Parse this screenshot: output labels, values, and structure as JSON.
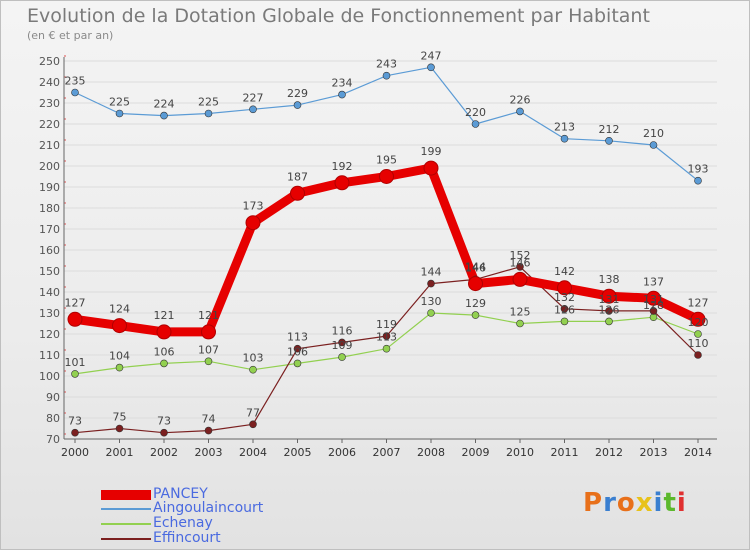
{
  "title": "Evolution de la Dotation Globale de Fonctionnement par Habitant",
  "subtitle": "(en € et par an)",
  "logo": {
    "text": "Proxiti",
    "letters": [
      "P",
      "r",
      "o",
      "x",
      "i",
      "t",
      "i"
    ],
    "colors": [
      "#e8701a",
      "#3a7fd0",
      "#e8701a",
      "#e8c21a",
      "#3a7fd0",
      "#5cb82c",
      "#e03030"
    ]
  },
  "chart_data": {
    "type": "line",
    "title": "Evolution de la Dotation Globale de Fonctionnement par Habitant",
    "ylabel": "(en € et par an)",
    "xlabel": "",
    "x": [
      2000,
      2001,
      2002,
      2003,
      2004,
      2005,
      2006,
      2007,
      2008,
      2009,
      2010,
      2011,
      2012,
      2013,
      2014
    ],
    "ylim": [
      70,
      250
    ],
    "yticks": [
      70,
      80,
      90,
      100,
      110,
      120,
      130,
      140,
      150,
      160,
      170,
      180,
      190,
      200,
      210,
      220,
      230,
      240,
      250
    ],
    "grid": "horizontal",
    "legend_position": "bottom-left",
    "series": [
      {
        "name": "PANCEY",
        "color": "#e60000",
        "values": [
          127,
          124,
          121,
          121,
          173,
          187,
          192,
          195,
          199,
          144,
          146,
          142,
          138,
          137,
          127
        ],
        "labels": [
          "127",
          "124",
          "121",
          "121",
          "173",
          "187",
          "192",
          "195",
          "199",
          "144",
          "146",
          "142",
          "138",
          "137",
          "127"
        ]
      },
      {
        "name": "Aingoulaincourt",
        "color": "#5b9bd5",
        "values": [
          235,
          225,
          224,
          225,
          227,
          229,
          234,
          243,
          247,
          220,
          226,
          213,
          212,
          210,
          193
        ],
        "labels": [
          "235",
          "225",
          "224",
          "225",
          "227",
          "229",
          "234",
          "243",
          "247",
          "220",
          "226",
          "213",
          "212",
          "210",
          "193"
        ]
      },
      {
        "name": "Echenay",
        "color": "#92d050",
        "values": [
          101,
          104,
          106,
          107,
          103,
          106,
          109,
          113,
          130,
          129,
          125,
          126,
          126,
          128,
          120
        ],
        "labels": [
          "101",
          "104",
          "106",
          "107",
          "103",
          "106",
          "109",
          "113",
          "130",
          "129",
          "125",
          "126",
          "126",
          "128",
          "120"
        ]
      },
      {
        "name": "Effincourt",
        "color": "#7b2020",
        "values": [
          73,
          75,
          73,
          74,
          77,
          113,
          116,
          119,
          144,
          146,
          152,
          132,
          131,
          131,
          110
        ],
        "labels": [
          "73",
          "75",
          "73",
          "74",
          "77",
          "113",
          "116",
          "119",
          "144",
          "146",
          "152",
          "132",
          "131",
          "131",
          "110"
        ]
      }
    ]
  }
}
